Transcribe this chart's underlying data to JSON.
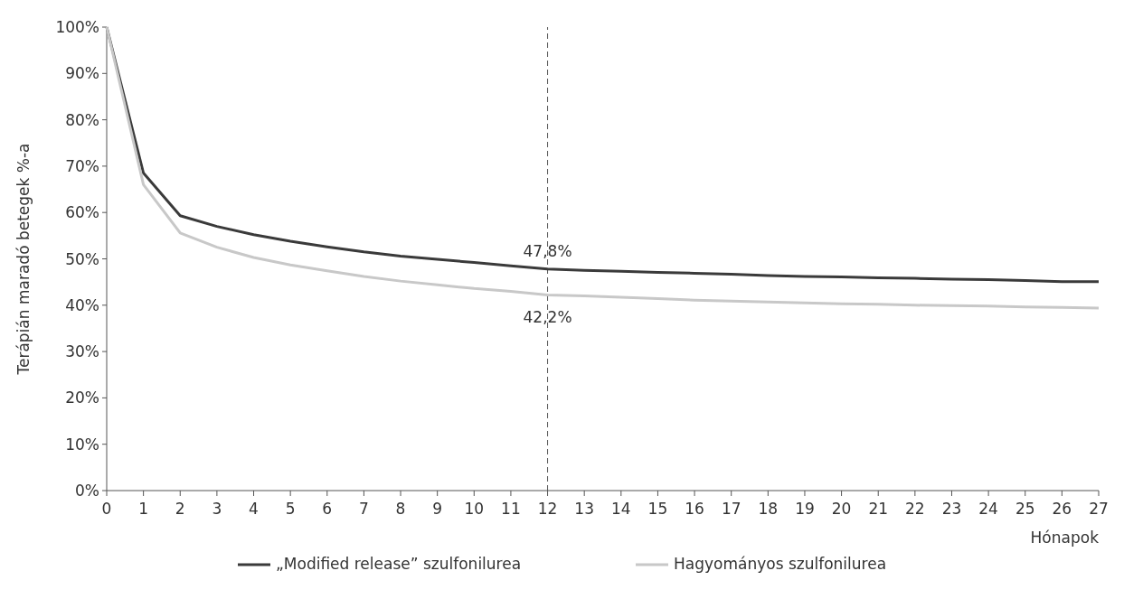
{
  "chart_data": {
    "type": "line",
    "ylabel": "Terápián maradó betegek %-a",
    "xlabel": "Hónapok",
    "x": [
      0,
      1,
      2,
      3,
      4,
      5,
      6,
      7,
      8,
      9,
      10,
      11,
      12,
      13,
      14,
      15,
      16,
      17,
      18,
      19,
      20,
      21,
      22,
      23,
      24,
      25,
      26,
      27
    ],
    "series": [
      {
        "name": "„Modified release” szulfonilurea",
        "color": "#3a3a3a",
        "values": [
          100,
          68.5,
          59.3,
          57,
          55.2,
          53.8,
          52.6,
          51.5,
          50.6,
          49.9,
          49.2,
          48.5,
          47.8,
          47.5,
          47.3,
          47.1,
          46.9,
          46.7,
          46.4,
          46.2,
          46.1,
          45.9,
          45.8,
          45.6,
          45.5,
          45.3,
          45.1,
          45.1
        ]
      },
      {
        "name": "Hagyományos szulfonilurea",
        "color": "#c8c8c8",
        "values": [
          100,
          66,
          55.6,
          52.5,
          50.3,
          48.7,
          47.4,
          46.2,
          45.2,
          44.4,
          43.6,
          43,
          42.2,
          42,
          41.7,
          41.4,
          41.1,
          40.9,
          40.7,
          40.5,
          40.3,
          40.2,
          40,
          39.9,
          39.8,
          39.6,
          39.5,
          39.4
        ]
      }
    ],
    "xlim": [
      0,
      27
    ],
    "xticks": [
      0,
      1,
      2,
      3,
      4,
      5,
      6,
      7,
      8,
      9,
      10,
      11,
      12,
      13,
      14,
      15,
      16,
      17,
      18,
      19,
      20,
      21,
      22,
      23,
      24,
      25,
      26,
      27
    ],
    "ylim": [
      0,
      100
    ],
    "yticks": [
      {
        "value": 0,
        "label": "0%"
      },
      {
        "value": 10,
        "label": "10%"
      },
      {
        "value": 20,
        "label": "20%"
      },
      {
        "value": 30,
        "label": "30%"
      },
      {
        "value": 40,
        "label": "40%"
      },
      {
        "value": 50,
        "label": "50%"
      },
      {
        "value": 60,
        "label": "60%"
      },
      {
        "value": 70,
        "label": "70%"
      },
      {
        "value": 80,
        "label": "80%"
      },
      {
        "value": 90,
        "label": "90%"
      },
      {
        "value": 100,
        "label": "100%"
      }
    ],
    "ref_lines": [
      {
        "axis": "x",
        "value": 12,
        "label": null,
        "color": "#555555",
        "line_style": "dashed"
      }
    ],
    "annotations": [
      {
        "text": "47,8%",
        "x": 12,
        "y": 47.8
      },
      {
        "text": "42,2%",
        "x": 12,
        "y": 42.2
      }
    ],
    "legend": "bottom",
    "grid": false,
    "marker": "none",
    "line_style": "solid"
  }
}
